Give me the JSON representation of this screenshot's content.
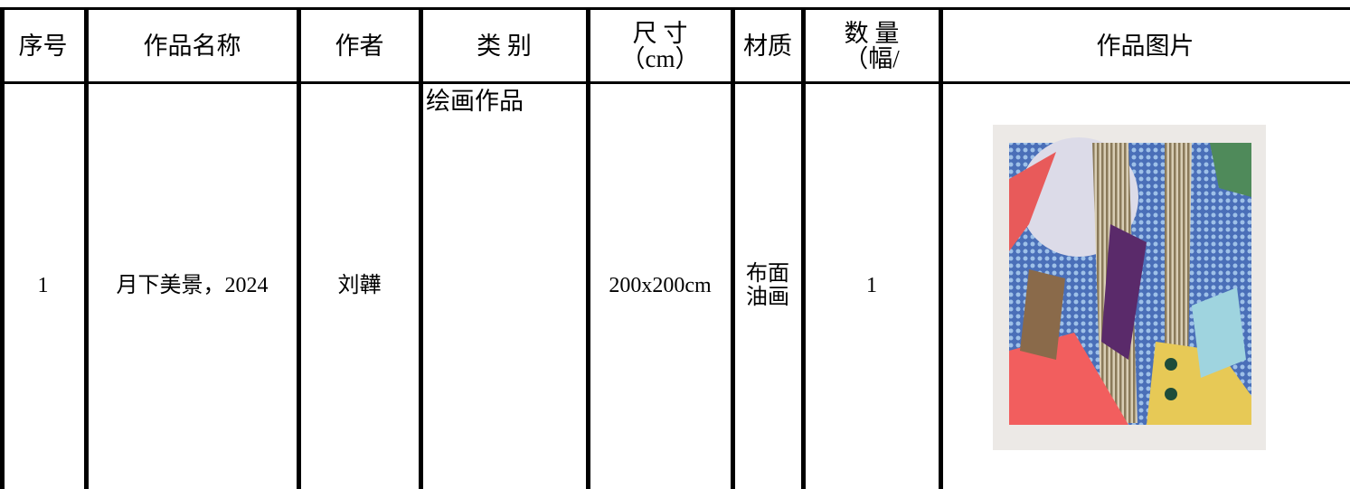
{
  "table": {
    "header": [
      {
        "lines": [
          "序号"
        ]
      },
      {
        "lines": [
          "作品名称"
        ]
      },
      {
        "lines": [
          "作者"
        ]
      },
      {
        "lines": [
          "类 别"
        ]
      },
      {
        "lines": [
          "尺 寸",
          "（cm）"
        ]
      },
      {
        "lines": [
          "材质"
        ]
      },
      {
        "lines": [
          "数 量",
          "（幅/"
        ]
      },
      {
        "lines": [
          "作品图片"
        ]
      }
    ],
    "rows": [
      [
        {
          "lines": [
            "1"
          ]
        },
        {
          "lines": [
            "月下美景，2024"
          ]
        },
        {
          "lines": [
            "刘韡"
          ]
        },
        {
          "lines": [
            "绘画作品"
          ]
        },
        {
          "lines": [
            "200x200cm"
          ]
        },
        {
          "lines": [
            "布面",
            "油画"
          ]
        },
        {
          "lines": [
            "1"
          ]
        },
        {
          "lines": []
        }
      ]
    ]
  }
}
